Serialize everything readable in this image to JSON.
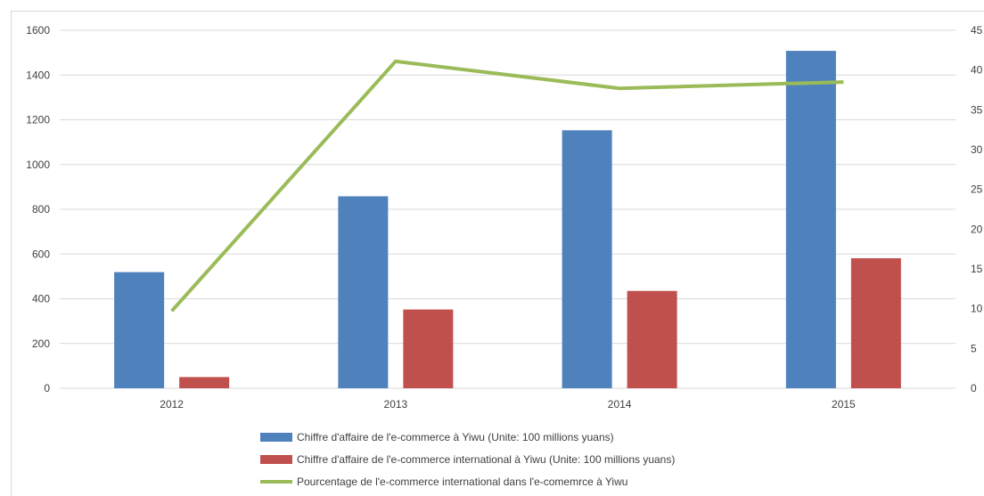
{
  "chart_data": {
    "type": "bar",
    "categories": [
      "2012",
      "2013",
      "2014",
      "2015"
    ],
    "series": [
      {
        "name": "Chiffre d'affaire de l'e-commerce à Yiwu (Unite: 100 millions yuans)",
        "kind": "bar",
        "axis": "left",
        "color": "#4f81bd",
        "values": [
          519,
          858,
          1153,
          1508
        ]
      },
      {
        "name": "Chiffre d'affaire de l'e-commerce international à Yiwu (Unite: 100 millions yuans)",
        "kind": "bar",
        "axis": "left",
        "color": "#c0504d",
        "values": [
          50,
          352,
          435,
          581
        ]
      },
      {
        "name": "Pourcentage de l'e-commerce international dans l'e-comemrce à Yiwu",
        "kind": "line",
        "axis": "right",
        "color": "#9bbb59",
        "values": [
          9.7,
          41.1,
          37.7,
          38.5
        ]
      }
    ],
    "y_left": {
      "min": 0,
      "max": 1600,
      "ticks": [
        0,
        200,
        400,
        600,
        800,
        1000,
        1200,
        1400,
        1600
      ]
    },
    "y_right": {
      "min": 0,
      "max": 45,
      "ticks": [
        0,
        5,
        10,
        15,
        20,
        25,
        30,
        35,
        40,
        45
      ]
    },
    "grid": true,
    "legend": "bottom",
    "title": "",
    "xlabel": "",
    "ylabel": ""
  }
}
